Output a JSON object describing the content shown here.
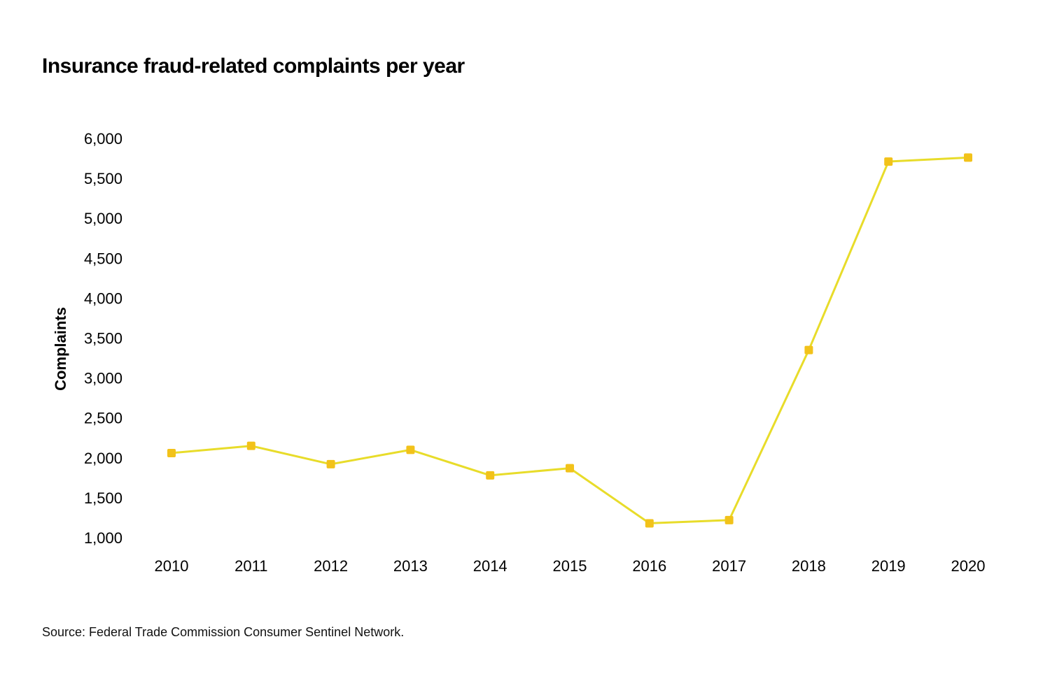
{
  "chart_data": {
    "type": "line",
    "title": "Insurance fraud-related complaints per year",
    "xlabel": "",
    "ylabel": "Complaints",
    "source": "Source: Federal Trade Commission Consumer Sentinel Network.",
    "categories": [
      "2010",
      "2011",
      "2012",
      "2013",
      "2014",
      "2015",
      "2016",
      "2017",
      "2018",
      "2019",
      "2020"
    ],
    "series": [
      {
        "values": [
          2060,
          2150,
          1920,
          2100,
          1780,
          1870,
          1180,
          1220,
          3350,
          5710,
          5760
        ]
      }
    ],
    "ylim": [
      1000,
      6000
    ],
    "yticks": [
      1000,
      1500,
      2000,
      2500,
      3000,
      3500,
      4000,
      4500,
      5000,
      5500,
      6000
    ],
    "ytick_labels": [
      "1,000",
      "1,500",
      "2,000",
      "2,500",
      "3,000",
      "3,500",
      "4,000",
      "4,500",
      "5,000",
      "5,500",
      "6,000"
    ],
    "grid": false,
    "legend": "none",
    "line_color": "#e8dc2a",
    "marker_color": "#f2c21a"
  }
}
